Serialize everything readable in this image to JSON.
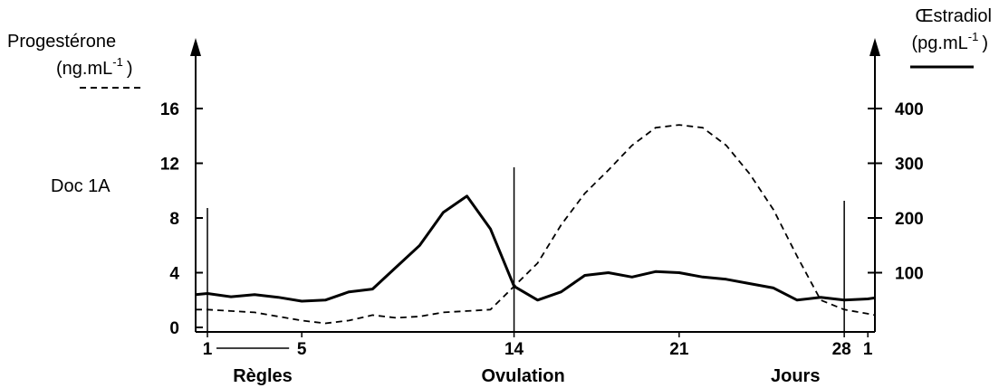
{
  "doc_label": "Doc 1A",
  "chart_data": {
    "type": "line",
    "left_axis": {
      "title": "Progestérone",
      "unit": "(ng.mL",
      "unit_exp": "-1",
      "unit_close": ")",
      "ticks": [
        0,
        4,
        8,
        12,
        16
      ],
      "range": [
        0,
        16
      ]
    },
    "right_axis": {
      "title": "Œstradiol",
      "unit": "(pg.mL",
      "unit_exp": "-1",
      "unit_close": ")",
      "ticks": [
        100,
        200,
        300,
        400
      ],
      "range": [
        0,
        400
      ]
    },
    "x_axis": {
      "ticks": [
        "1",
        "5",
        "14",
        "21",
        "28",
        "1"
      ],
      "range": [
        0.5,
        29.3
      ],
      "markers": [
        {
          "day": 1,
          "label": "Règles"
        },
        {
          "day": 14,
          "label": "Ovulation"
        },
        {
          "day": 28,
          "label": ""
        }
      ],
      "regles_span": [
        1,
        5
      ],
      "label": "Jours"
    },
    "series": [
      {
        "axis": "left",
        "style": "dashed",
        "x": [
          0.5,
          1,
          2,
          3,
          4,
          5,
          6,
          7,
          8,
          9,
          10,
          11,
          12,
          13,
          14,
          15,
          16,
          17,
          18,
          19,
          20,
          21,
          22,
          23,
          24,
          25,
          26,
          27,
          28,
          29,
          29.3
        ],
        "values": [
          1.3,
          1.3,
          1.2,
          1.1,
          0.8,
          0.5,
          0.3,
          0.5,
          0.9,
          0.7,
          0.8,
          1.1,
          1.2,
          1.3,
          3.0,
          4.7,
          7.5,
          9.8,
          11.5,
          13.3,
          14.6,
          14.8,
          14.6,
          13.3,
          11.2,
          8.6,
          5.2,
          2.0,
          1.3,
          1.0,
          0.9
        ]
      },
      {
        "axis": "right",
        "style": "solid",
        "x": [
          0.5,
          1,
          2,
          3,
          4,
          5,
          6,
          7,
          8,
          9,
          10,
          11,
          12,
          13,
          14,
          15,
          16,
          17,
          18,
          19,
          20,
          21,
          22,
          23,
          24,
          25,
          26,
          27,
          28,
          29,
          29.3
        ],
        "values": [
          60,
          62,
          56,
          60,
          55,
          48,
          50,
          65,
          70,
          110,
          150,
          210,
          240,
          180,
          75,
          50,
          65,
          95,
          100,
          92,
          102,
          100,
          92,
          88,
          80,
          72,
          50,
          55,
          50,
          52,
          54
        ]
      }
    ]
  }
}
